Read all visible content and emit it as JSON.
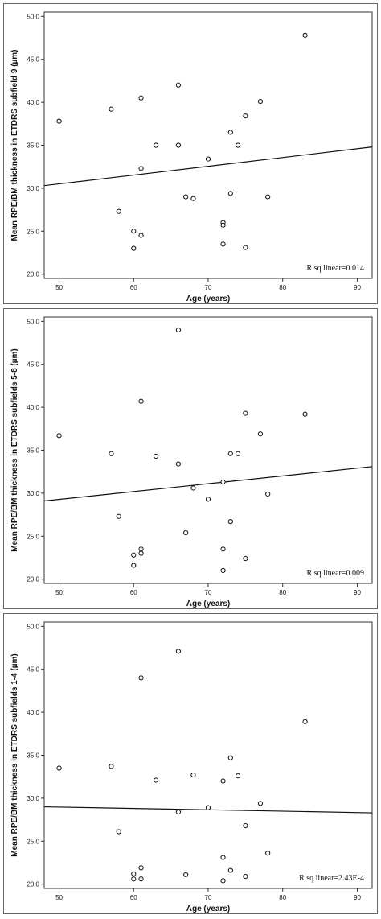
{
  "chart_data": [
    {
      "type": "scatter",
      "xlabel": "Age (years)",
      "ylabel": "Mean RPE/BM thickness in ETDRS subfield 9 (µm)",
      "xlim": [
        48,
        92
      ],
      "ylim": [
        19.5,
        50.5
      ],
      "xticks": [
        "50",
        "60",
        "70",
        "80",
        "90"
      ],
      "yticks": [
        "20.0",
        "25.0",
        "30.0",
        "35.0",
        "40.0",
        "45.0",
        "50.0"
      ],
      "annotation": "R sq linear=0.014",
      "fit_line": {
        "x": [
          48,
          92
        ],
        "y": [
          30.3,
          34.8
        ]
      },
      "grid": false,
      "points": [
        {
          "x": 50,
          "y": 37.8
        },
        {
          "x": 57,
          "y": 39.2
        },
        {
          "x": 58,
          "y": 27.3
        },
        {
          "x": 60,
          "y": 25.0
        },
        {
          "x": 60,
          "y": 23.0
        },
        {
          "x": 61,
          "y": 40.5
        },
        {
          "x": 61,
          "y": 32.3
        },
        {
          "x": 61,
          "y": 24.5
        },
        {
          "x": 63,
          "y": 35.0
        },
        {
          "x": 66,
          "y": 42.0
        },
        {
          "x": 66,
          "y": 35.0
        },
        {
          "x": 67,
          "y": 29.0
        },
        {
          "x": 68,
          "y": 28.8
        },
        {
          "x": 70,
          "y": 33.4
        },
        {
          "x": 72,
          "y": 26.0
        },
        {
          "x": 72,
          "y": 25.7
        },
        {
          "x": 72,
          "y": 23.5
        },
        {
          "x": 73,
          "y": 36.5
        },
        {
          "x": 73,
          "y": 29.4
        },
        {
          "x": 74,
          "y": 35.0
        },
        {
          "x": 75,
          "y": 38.4
        },
        {
          "x": 75,
          "y": 23.1
        },
        {
          "x": 77,
          "y": 40.1
        },
        {
          "x": 78,
          "y": 29.0
        },
        {
          "x": 83,
          "y": 47.8
        }
      ]
    },
    {
      "type": "scatter",
      "xlabel": "Age (years)",
      "ylabel": "Mean RPE/BM thickness in ETDRS subfields 5-8 (µm)",
      "xlim": [
        48,
        92
      ],
      "ylim": [
        19.5,
        50.5
      ],
      "xticks": [
        "50",
        "60",
        "70",
        "80",
        "90"
      ],
      "yticks": [
        "20.0",
        "25.0",
        "30.0",
        "35.0",
        "40.0",
        "45.0",
        "50.0"
      ],
      "annotation": "R sq linear=0.009",
      "fit_line": {
        "x": [
          48,
          92
        ],
        "y": [
          29.1,
          33.1
        ]
      },
      "grid": false,
      "points": [
        {
          "x": 50,
          "y": 36.7
        },
        {
          "x": 57,
          "y": 34.6
        },
        {
          "x": 58,
          "y": 27.3
        },
        {
          "x": 60,
          "y": 22.8
        },
        {
          "x": 60,
          "y": 21.6
        },
        {
          "x": 61,
          "y": 40.7
        },
        {
          "x": 61,
          "y": 23.5
        },
        {
          "x": 61,
          "y": 23.0
        },
        {
          "x": 63,
          "y": 34.3
        },
        {
          "x": 66,
          "y": 49.0
        },
        {
          "x": 66,
          "y": 33.4
        },
        {
          "x": 67,
          "y": 25.4
        },
        {
          "x": 68,
          "y": 30.6
        },
        {
          "x": 70,
          "y": 29.3
        },
        {
          "x": 72,
          "y": 31.3
        },
        {
          "x": 72,
          "y": 23.5
        },
        {
          "x": 72,
          "y": 21.0
        },
        {
          "x": 73,
          "y": 34.6
        },
        {
          "x": 73,
          "y": 26.7
        },
        {
          "x": 74,
          "y": 34.6
        },
        {
          "x": 75,
          "y": 39.3
        },
        {
          "x": 75,
          "y": 22.4
        },
        {
          "x": 77,
          "y": 36.9
        },
        {
          "x": 78,
          "y": 29.9
        },
        {
          "x": 83,
          "y": 39.2
        }
      ]
    },
    {
      "type": "scatter",
      "xlabel": "Age (years)",
      "ylabel": "Mean RPE/BM thickness in ETDRS subfields 1-4 (µm)",
      "xlim": [
        48,
        92
      ],
      "ylim": [
        19.5,
        50.5
      ],
      "xticks": [
        "50",
        "60",
        "70",
        "80",
        "90"
      ],
      "yticks": [
        "20.0",
        "25.0",
        "30.0",
        "35.0",
        "40.0",
        "45.0",
        "50.0"
      ],
      "annotation": "R sq linear=2.43E-4",
      "fit_line": {
        "x": [
          48,
          92
        ],
        "y": [
          29.0,
          28.3
        ]
      },
      "grid": false,
      "points": [
        {
          "x": 50,
          "y": 33.5
        },
        {
          "x": 57,
          "y": 33.7
        },
        {
          "x": 58,
          "y": 26.1
        },
        {
          "x": 60,
          "y": 21.2
        },
        {
          "x": 60,
          "y": 20.6
        },
        {
          "x": 61,
          "y": 44.0
        },
        {
          "x": 61,
          "y": 21.9
        },
        {
          "x": 61,
          "y": 20.6
        },
        {
          "x": 63,
          "y": 32.1
        },
        {
          "x": 66,
          "y": 47.1
        },
        {
          "x": 66,
          "y": 28.4
        },
        {
          "x": 67,
          "y": 21.1
        },
        {
          "x": 68,
          "y": 32.7
        },
        {
          "x": 70,
          "y": 28.9
        },
        {
          "x": 72,
          "y": 32.0
        },
        {
          "x": 72,
          "y": 23.1
        },
        {
          "x": 72,
          "y": 20.4
        },
        {
          "x": 73,
          "y": 34.7
        },
        {
          "x": 73,
          "y": 21.6
        },
        {
          "x": 74,
          "y": 32.6
        },
        {
          "x": 75,
          "y": 26.8
        },
        {
          "x": 75,
          "y": 20.9
        },
        {
          "x": 77,
          "y": 29.4
        },
        {
          "x": 78,
          "y": 23.6
        },
        {
          "x": 83,
          "y": 38.9
        }
      ]
    }
  ]
}
